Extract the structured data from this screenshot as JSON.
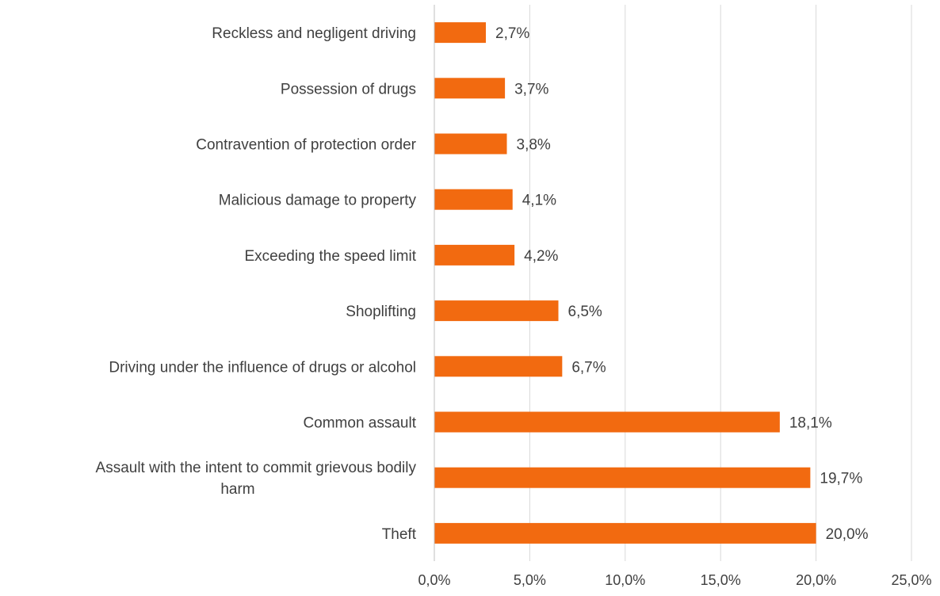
{
  "chart_data": {
    "type": "bar",
    "orientation": "horizontal",
    "categories": [
      "Reckless and negligent driving",
      "Possession of drugs",
      "Contravention of protection order",
      "Malicious damage to property",
      "Exceeding the speed limit",
      "Shoplifting",
      "Driving under the influence of drugs or alcohol",
      "Common assault",
      "Assault with the intent to commit grievous bodily harm",
      "Theft"
    ],
    "category_label_lines": [
      [
        "Reckless and negligent driving"
      ],
      [
        "Possession of drugs"
      ],
      [
        "Contravention of protection order"
      ],
      [
        "Malicious damage to property"
      ],
      [
        "Exceeding the speed limit"
      ],
      [
        "Shoplifting"
      ],
      [
        "Driving under the influence of drugs or alcohol"
      ],
      [
        "Common assault"
      ],
      [
        "Assault with the intent to commit grievous bodily",
        "harm"
      ],
      [
        "Theft"
      ]
    ],
    "values": [
      2.7,
      3.7,
      3.8,
      4.1,
      4.2,
      6.5,
      6.7,
      18.1,
      19.7,
      20.0
    ],
    "data_labels": [
      "2,7%",
      "3,7%",
      "3,8%",
      "4,1%",
      "4,2%",
      "6,5%",
      "6,7%",
      "18,1%",
      "19,7%",
      "20,0%"
    ],
    "xlim": [
      0,
      25
    ],
    "x_ticks": [
      0,
      5,
      10,
      15,
      20,
      25
    ],
    "x_tick_labels": [
      "0,0%",
      "5,0%",
      "10,0%",
      "15,0%",
      "20,0%",
      "25,0%"
    ],
    "title": "",
    "xlabel": "",
    "ylabel": "",
    "grid": "vertical",
    "legend": "none",
    "bar_color": "#F26A10"
  }
}
